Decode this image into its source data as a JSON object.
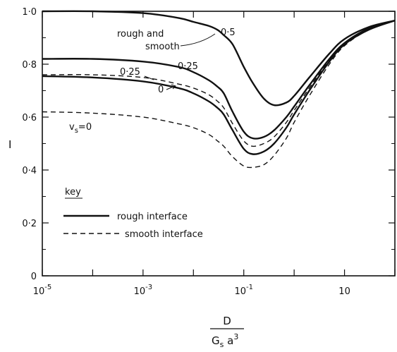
{
  "chart_data": {
    "type": "line",
    "x_scale": "log",
    "xlim": [
      1e-05,
      100
    ],
    "ylim": [
      0,
      1.0
    ],
    "grid": false,
    "ylabel": "I",
    "xlabel_numerator": "D",
    "xlabel_denominator_base": "G",
    "xlabel_denominator_sub": "s",
    "xlabel_denominator_rest": " a",
    "xlabel_denominator_sup": "3",
    "y_ticks": [
      {
        "value": 0,
        "label": "0"
      },
      {
        "value": 0.2,
        "label": "0·2"
      },
      {
        "value": 0.4,
        "label": "0·4"
      },
      {
        "value": 0.6,
        "label": "0·6"
      },
      {
        "value": 0.8,
        "label": "0·8"
      },
      {
        "value": 1.0,
        "label": "1·0"
      }
    ],
    "x_ticks": [
      {
        "value": 1e-05,
        "base": "10",
        "exp": "-5"
      },
      {
        "value": 0.001,
        "base": "10",
        "exp": "-3"
      },
      {
        "value": 0.1,
        "base": "10",
        "exp": "-1"
      },
      {
        "value": 10,
        "base": "10",
        "exp": ""
      }
    ],
    "series": [
      {
        "style": "solid",
        "x": [
          1e-05,
          0.0001,
          0.001,
          0.005,
          0.01,
          0.02,
          0.03,
          0.04,
          0.06,
          0.1,
          0.15,
          0.25,
          0.4,
          0.7,
          1,
          2,
          5,
          10,
          30,
          100
        ],
        "y": [
          1.0,
          1.0,
          0.993,
          0.975,
          0.96,
          0.945,
          0.93,
          0.91,
          0.875,
          0.79,
          0.73,
          0.67,
          0.645,
          0.655,
          0.68,
          0.75,
          0.84,
          0.895,
          0.94,
          0.965
        ]
      },
      {
        "style": "solid",
        "x": [
          1e-05,
          0.0001,
          0.001,
          0.005,
          0.01,
          0.02,
          0.03,
          0.04,
          0.06,
          0.1,
          0.15,
          0.25,
          0.4,
          0.7,
          1,
          2,
          5,
          10,
          30,
          100
        ],
        "y": [
          0.82,
          0.82,
          0.81,
          0.79,
          0.77,
          0.74,
          0.715,
          0.69,
          0.62,
          0.545,
          0.52,
          0.525,
          0.55,
          0.6,
          0.64,
          0.72,
          0.82,
          0.88,
          0.935,
          0.965
        ]
      },
      {
        "style": "solid",
        "x": [
          1e-05,
          0.0001,
          0.001,
          0.005,
          0.01,
          0.02,
          0.03,
          0.04,
          0.06,
          0.1,
          0.15,
          0.25,
          0.4,
          0.7,
          1,
          2,
          5,
          10,
          30,
          100
        ],
        "y": [
          0.755,
          0.75,
          0.735,
          0.71,
          0.69,
          0.66,
          0.635,
          0.61,
          0.55,
          0.48,
          0.46,
          0.47,
          0.5,
          0.56,
          0.61,
          0.7,
          0.81,
          0.875,
          0.93,
          0.965
        ]
      },
      {
        "style": "dashed",
        "x": [
          1e-05,
          0.0001,
          0.001,
          0.005,
          0.01,
          0.02,
          0.03,
          0.04,
          0.06,
          0.1,
          0.15,
          0.25,
          0.4,
          0.7,
          1,
          2,
          5,
          10,
          30,
          100
        ],
        "y": [
          0.76,
          0.76,
          0.75,
          0.725,
          0.71,
          0.685,
          0.66,
          0.635,
          0.575,
          0.51,
          0.49,
          0.5,
          0.525,
          0.58,
          0.625,
          0.71,
          0.815,
          0.877,
          0.932,
          0.965
        ]
      },
      {
        "style": "dashed",
        "x": [
          1e-05,
          0.0001,
          0.001,
          0.005,
          0.01,
          0.02,
          0.03,
          0.04,
          0.06,
          0.1,
          0.15,
          0.25,
          0.4,
          0.7,
          1,
          2,
          5,
          10,
          30,
          100
        ],
        "y": [
          0.62,
          0.615,
          0.6,
          0.575,
          0.56,
          0.535,
          0.51,
          0.49,
          0.45,
          0.415,
          0.41,
          0.42,
          0.455,
          0.52,
          0.58,
          0.68,
          0.8,
          0.87,
          0.93,
          0.965
        ]
      }
    ],
    "annotations": {
      "rough_smooth_line1": "rough  and",
      "rough_smooth_line2": "smooth",
      "label_05": "0·5",
      "label_025_rough": "0·25",
      "label_025_smooth": "0·25",
      "label_0": "0",
      "vs_label_v": "v",
      "vs_label_sub": "s",
      "vs_label_rest": "=0"
    },
    "legend": {
      "title": "key",
      "placement": "bottom-left",
      "entries": [
        {
          "style": "solid",
          "label": "rough  interface"
        },
        {
          "style": "dashed",
          "label": "smooth  interface"
        }
      ]
    }
  }
}
